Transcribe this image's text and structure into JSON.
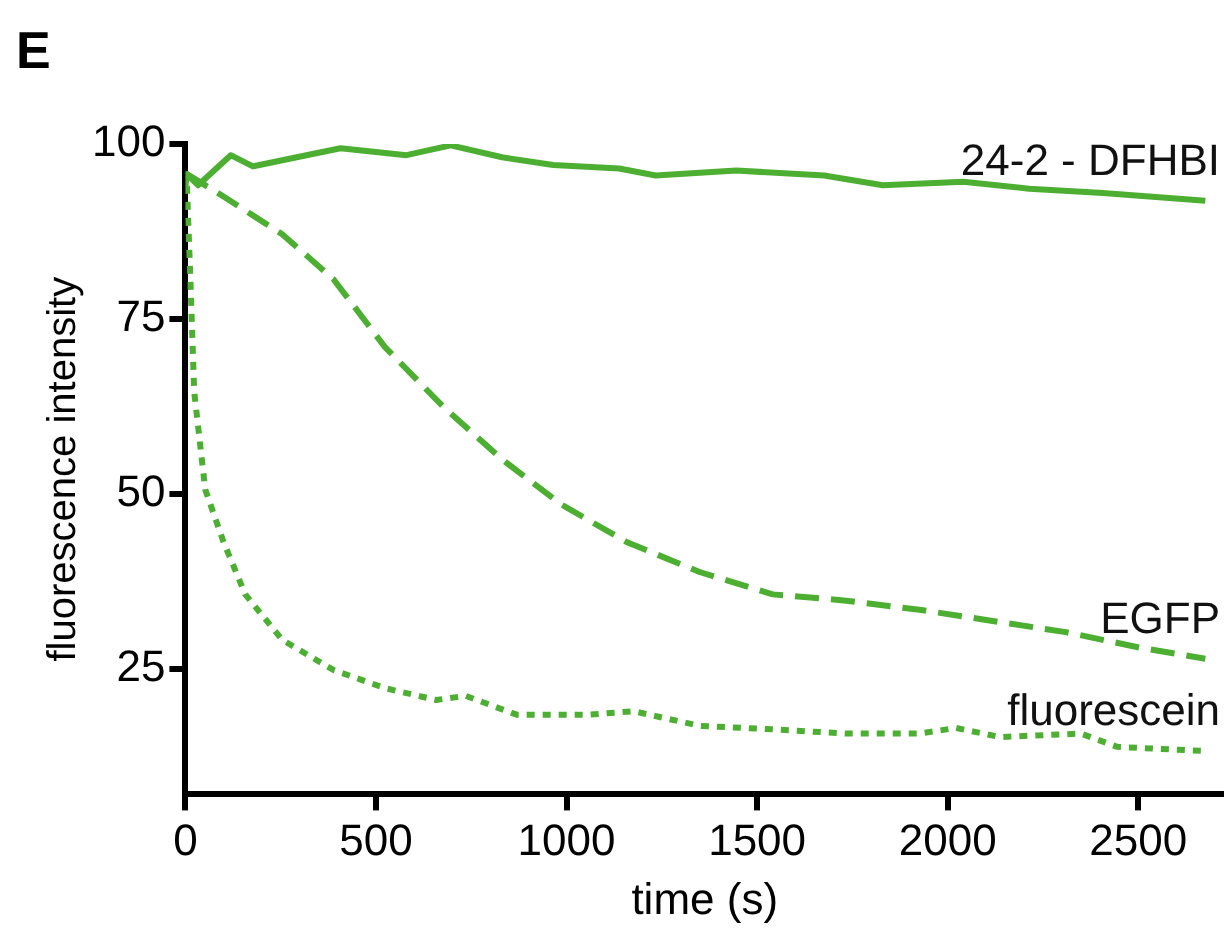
{
  "chart_data": {
    "type": "line",
    "xlabel": "time (s)",
    "ylabel": "fluorescence intensity",
    "annotations": [
      "E"
    ],
    "xlim": [
      0,
      2725
    ],
    "xticks": [
      0,
      500,
      1000,
      1500,
      2000,
      2500
    ],
    "ylim": [
      7,
      100
    ],
    "yticks": [
      25,
      50,
      75,
      100
    ],
    "grid": false,
    "legend": false,
    "marker": "none",
    "series": [
      {
        "name": "24-2 - DFHBI",
        "color": "#4caf32",
        "line_style": "solid",
        "x": [
          0,
          4,
          33,
          119,
          177,
          292,
          407,
          580,
          696,
          831,
          965,
          1138,
          1234,
          1445,
          1676,
          1830,
          2041,
          2214,
          2407,
          2676
        ],
        "values": [
          94,
          95.7,
          94.1,
          98.4,
          96.8,
          98.1,
          99.4,
          98.4,
          99.8,
          98.1,
          97.0,
          96.5,
          95.5,
          96.2,
          95.5,
          94.1,
          94.6,
          93.6,
          93.0,
          91.9
        ]
      },
      {
        "name": "EGFP",
        "color": "#4caf32",
        "line_style": "dashed",
        "x": [
          4,
          100,
          254,
          388,
          523,
          677,
          831,
          985,
          1157,
          1349,
          1541,
          1734,
          1926,
          2118,
          2310,
          2503,
          2676
        ],
        "values": [
          95.7,
          92.5,
          87.1,
          80.7,
          71.0,
          62.4,
          54.9,
          48.5,
          43.1,
          38.8,
          35.6,
          34.7,
          33.4,
          31.8,
          30.2,
          28.0,
          26.4
        ]
      },
      {
        "name": "fluorescein",
        "color": "#4caf32",
        "line_style": "dotted",
        "x": [
          4,
          13,
          23,
          52,
          100,
          157,
          254,
          388,
          523,
          658,
          735,
          869,
          1061,
          1176,
          1349,
          1541,
          1734,
          1926,
          2022,
          2137,
          2349,
          2445,
          2676
        ],
        "values": [
          94,
          80.7,
          64.6,
          50.6,
          43.1,
          35.6,
          29.1,
          24.8,
          22.2,
          20.5,
          21.1,
          18.4,
          18.4,
          18.9,
          16.8,
          16.3,
          15.7,
          15.7,
          16.5,
          15.2,
          15.7,
          13.8,
          13.2
        ]
      }
    ]
  }
}
